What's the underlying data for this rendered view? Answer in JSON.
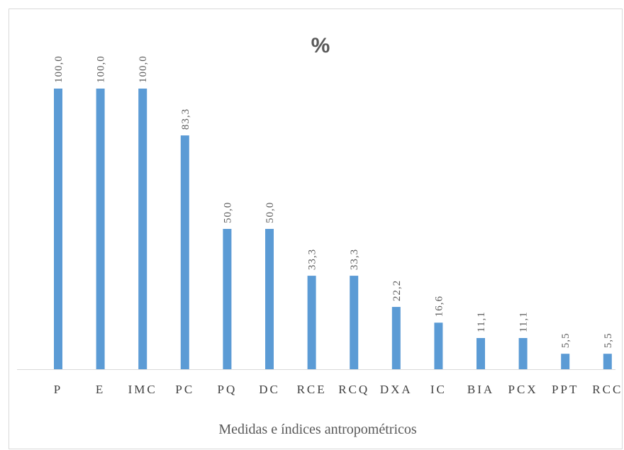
{
  "chart_data": {
    "type": "bar",
    "title": "%",
    "xlabel": "Medidas e índices antropométricos",
    "ylabel": "",
    "categories": [
      "P",
      "E",
      "IMC",
      "PC",
      "PQ",
      "DC",
      "RCE",
      "RCQ",
      "DXA",
      "IC",
      "BIA",
      "PCX",
      "PPT",
      "RCC"
    ],
    "values": [
      100.0,
      100.0,
      100.0,
      83.3,
      50.0,
      50.0,
      33.3,
      33.3,
      22.2,
      16.6,
      11.1,
      11.1,
      5.5,
      5.5
    ],
    "data_labels": [
      "100,0",
      "100,0",
      "100,0",
      "83,3",
      "50,0",
      "50,0",
      "33,3",
      "33,3",
      "22,2",
      "16,6",
      "11,1",
      "11,1",
      "5,5",
      "5,5"
    ],
    "ylim": [
      0,
      100
    ],
    "grid": false,
    "legend": "none",
    "bar_color": "#5b9bd5",
    "axis_color": "#d9d9d9"
  }
}
